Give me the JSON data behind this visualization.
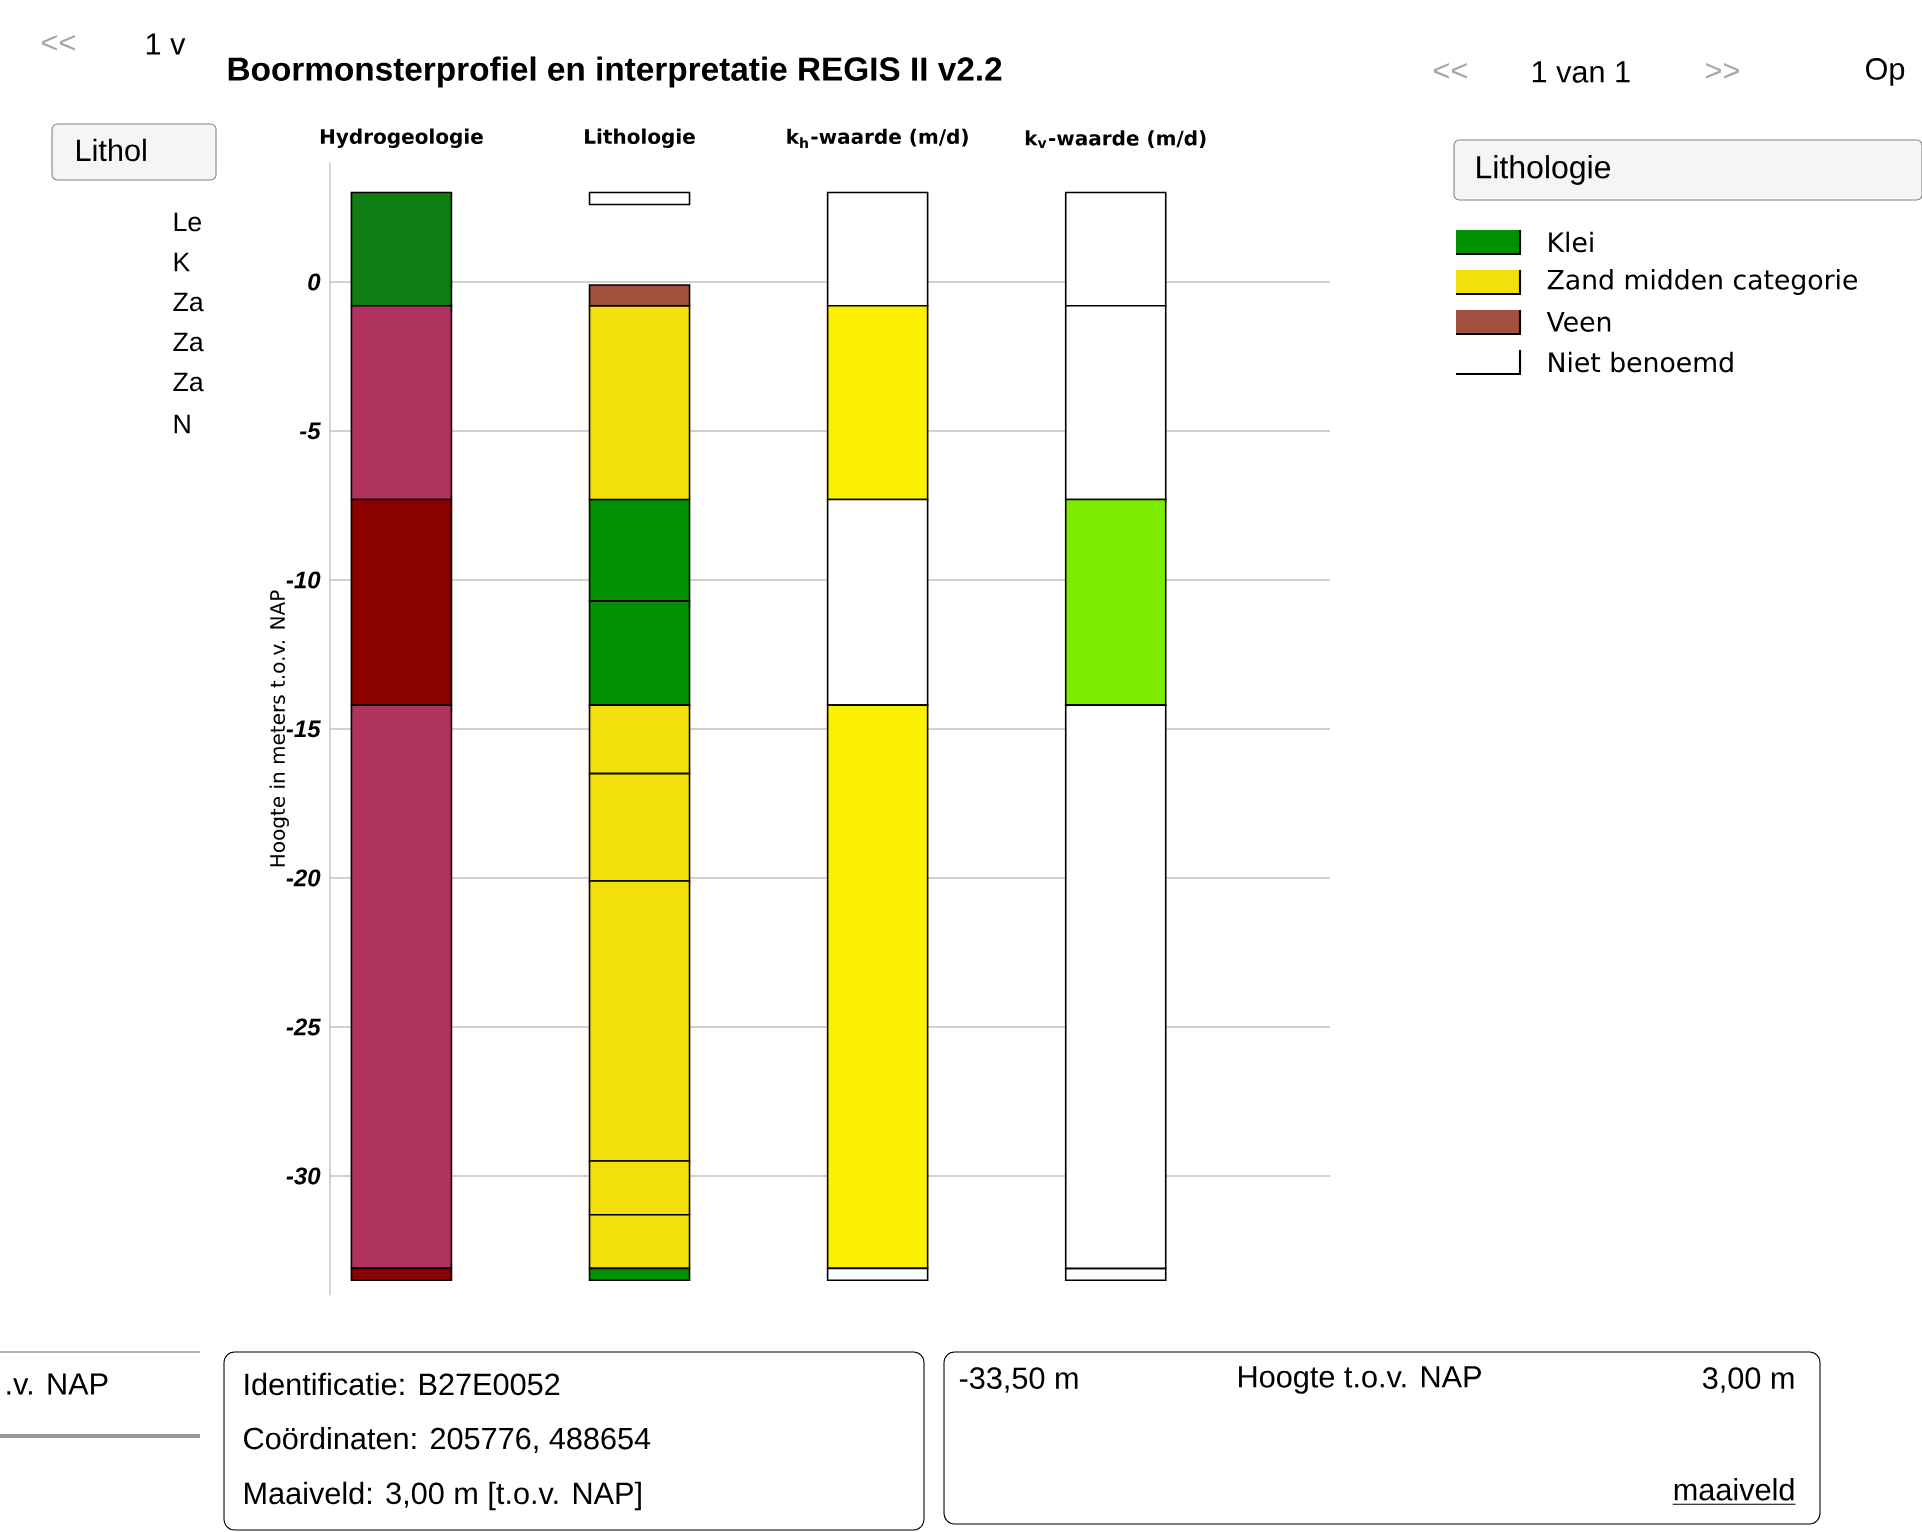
{
  "chart_data": {
    "type": "bar",
    "title": "Boormonsterprofiel en interpretatie REGIS II v2.2",
    "ylabel": "Hoogte in meters t.o.v. NAP",
    "legend_title": "Lithologie",
    "categories": [
      "Hydrogeologie",
      "Lithologie",
      "k$_{h}$-waarde (m/d)",
      "k$_{v}$-waarde (m/d)"
    ],
    "ylim": [
      -34,
      4
    ],
    "yticks": [
      -30,
      -25,
      -20,
      -15,
      -10,
      -5,
      0
    ],
    "grid": "y",
    "legend": "right",
    "series": [
      {
        "name": "Klei",
        "color": "#009000",
        "values": [
          null,
          3.4,
          null,
          null
        ],
        "base": [
          null,
          -10.7,
          null,
          null
        ]
      },
      {
        "name": "Zand midden categorie",
        "color": "#f2df0c",
        "values": [
          null,
          6.5,
          null,
          null
        ],
        "base": [
          null,
          -7.3,
          null,
          null
        ]
      },
      {
        "name": "Veen",
        "color": "#a0503c",
        "values": [
          null,
          0.7,
          null,
          null
        ],
        "base": [
          null,
          -0.8,
          null,
          null
        ]
      },
      {
        "name": "Niet benoemd",
        "color": "#ffffff",
        "values": [
          null,
          0.4,
          null,
          null
        ],
        "base": [
          null,
          2.6,
          null,
          null
        ]
      },
      {
        "color": "#009000",
        "values": [
          null,
          3.5,
          null,
          null
        ],
        "base": [
          null,
          -14.2,
          null,
          null
        ]
      },
      {
        "color": "#f2df0c",
        "values": [
          null,
          2.3,
          null,
          null
        ],
        "base": [
          null,
          -16.5,
          null,
          null
        ]
      },
      {
        "color": "#f2df0c",
        "values": [
          null,
          3.6,
          null,
          null
        ],
        "base": [
          null,
          -20.1,
          null,
          null
        ]
      },
      {
        "color": "#f2df0c",
        "values": [
          null,
          9.4,
          null,
          null
        ],
        "base": [
          null,
          -29.5,
          null,
          null
        ]
      },
      {
        "color": "#f2df0c",
        "values": [
          null,
          1.8,
          null,
          null
        ],
        "base": [
          null,
          -31.3,
          null,
          null
        ]
      },
      {
        "color": "#f2df0c",
        "values": [
          null,
          1.8,
          null,
          null
        ],
        "base": [
          null,
          -33.1,
          null,
          null
        ]
      },
      {
        "color": "#009000",
        "values": [
          null,
          0.4,
          null,
          null
        ],
        "base": [
          null,
          -33.5,
          null,
          null
        ]
      },
      {
        "color": "#0e7d12",
        "values": [
          3.8,
          null,
          null,
          null
        ],
        "base": [
          -0.8,
          null,
          null,
          null
        ]
      },
      {
        "color": "#b0325e",
        "values": [
          6.5,
          null,
          null,
          null
        ],
        "base": [
          -7.3,
          null,
          null,
          null
        ]
      },
      {
        "color": "#8b0000",
        "values": [
          6.9,
          null,
          null,
          null
        ],
        "base": [
          -14.2,
          null,
          null,
          null
        ]
      },
      {
        "color": "#b0325e",
        "values": [
          18.9,
          null,
          null,
          null
        ],
        "base": [
          -33.1,
          null,
          null,
          null
        ]
      },
      {
        "color": "#8b0000",
        "values": [
          0.4,
          null,
          null,
          null
        ],
        "base": [
          -33.5,
          null,
          null,
          null
        ]
      },
      {
        "color": "#ffffff",
        "values": [
          null,
          null,
          3.8,
          3.8
        ],
        "base": [
          null,
          null,
          -0.8,
          -0.8
        ]
      },
      {
        "color": "#fbf000",
        "values": [
          null,
          null,
          6.5,
          null
        ],
        "base": [
          null,
          null,
          -7.3,
          null
        ]
      },
      {
        "color": "#ffffff",
        "values": [
          null,
          null,
          6.9,
          null
        ],
        "base": [
          null,
          null,
          -14.2,
          null
        ]
      },
      {
        "color": "#fbf000",
        "values": [
          null,
          null,
          18.9,
          null
        ],
        "base": [
          null,
          null,
          -33.1,
          null
        ]
      },
      {
        "color": "#ffffff",
        "values": [
          null,
          null,
          0.4,
          0.4
        ],
        "base": [
          null,
          null,
          -33.5,
          -33.5
        ]
      },
      {
        "color": "#ffffff",
        "values": [
          null,
          null,
          null,
          6.5
        ],
        "base": [
          null,
          null,
          null,
          -7.3
        ]
      },
      {
        "color": "#7ced00",
        "values": [
          null,
          null,
          null,
          6.9
        ],
        "base": [
          null,
          null,
          null,
          -14.2
        ]
      },
      {
        "color": "#ffffff",
        "values": [
          null,
          null,
          null,
          18.9
        ],
        "base": [
          null,
          null,
          null,
          -33.1
        ]
      }
    ],
    "annotations": [
      "<<",
      "1 v",
      "Lithol",
      "Le",
      "K",
      "Za",
      "Za",
      "Za",
      "N",
      "<<",
      "1 van 1",
      ">>",
      "Op",
      ".v. NAP",
      "Identificatie: B27E0052",
      "Coördinaten: 205776, 488654",
      "Maaiveld: 3,00 m [t.o.v. NAP]",
      "-33,50 m",
      "Hoogte t.o.v. NAP",
      "3,00 m",
      "maaiveld"
    ]
  }
}
